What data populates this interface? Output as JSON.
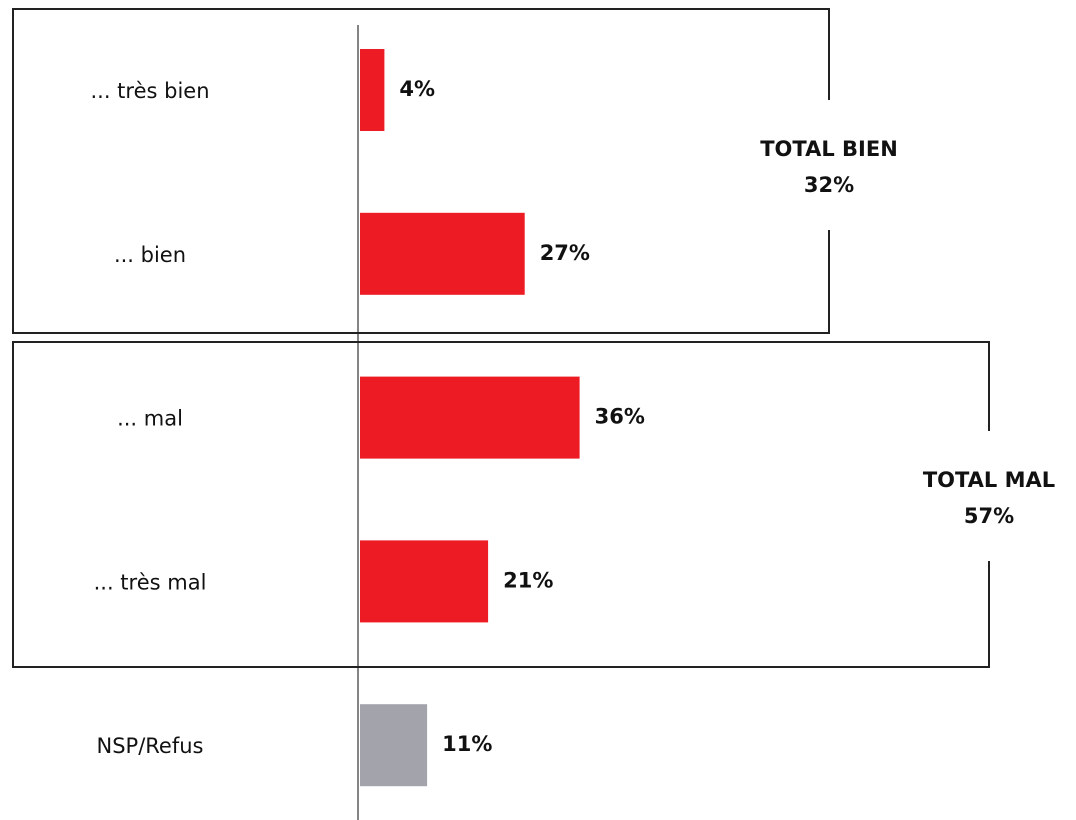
{
  "chart_data": {
    "type": "hbar",
    "categories": [
      "... très bien",
      "... bien",
      "... mal",
      "... très mal",
      "NSP/Refus"
    ],
    "values": [
      4,
      27,
      36,
      21,
      11
    ],
    "value_labels": [
      "4%",
      "27%",
      "36%",
      "21%",
      "11%"
    ],
    "colors": [
      "#ed1c24",
      "#ed1c24",
      "#ed1c24",
      "#ed1c24",
      "#a3a3ab"
    ],
    "groups": [
      {
        "name": "TOTAL BIEN",
        "value": 32,
        "value_label": "32%"
      },
      {
        "name": "TOTAL MAL",
        "value": 57,
        "value_label": "57%"
      }
    ]
  }
}
